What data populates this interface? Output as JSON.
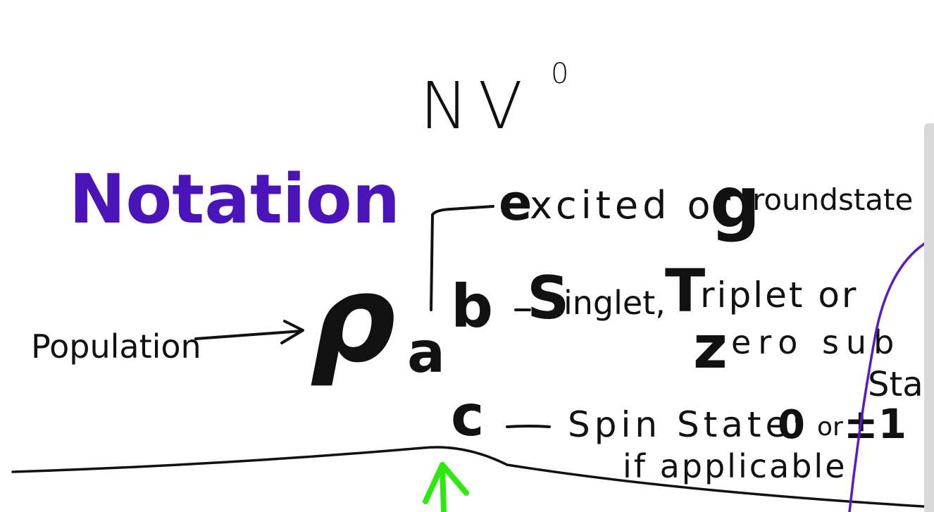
{
  "colors": {
    "ink": "#111111",
    "heading": "#4a14b8",
    "arrow_green": "#2ee80f",
    "curve_purple": "#5a1bc4",
    "scrollbar": "#d9d9d9"
  },
  "title": "NV",
  "title_superscript": "0",
  "heading": "Notation",
  "population_label": "Population",
  "rho_symbol": "ρ",
  "subscript_a": "a",
  "superscript_b": "b",
  "letter_c": "c",
  "letter_e": "e",
  "line1": "xcited or",
  "letter_g": "g",
  "line1_end": "roundstate",
  "letter_s": "S",
  "line2a": "inglet,",
  "letter_t": "T",
  "line2b": "riplet or",
  "letter_z": "z",
  "line3": "ero sub",
  "state_fragment": "State",
  "line4a": "Spin State:",
  "value_0": "0",
  "line4_or": "or",
  "value_pm1": "±1",
  "line5": "if applicable",
  "icons": [
    "population-arrow-icon",
    "green-up-arrow-icon"
  ]
}
